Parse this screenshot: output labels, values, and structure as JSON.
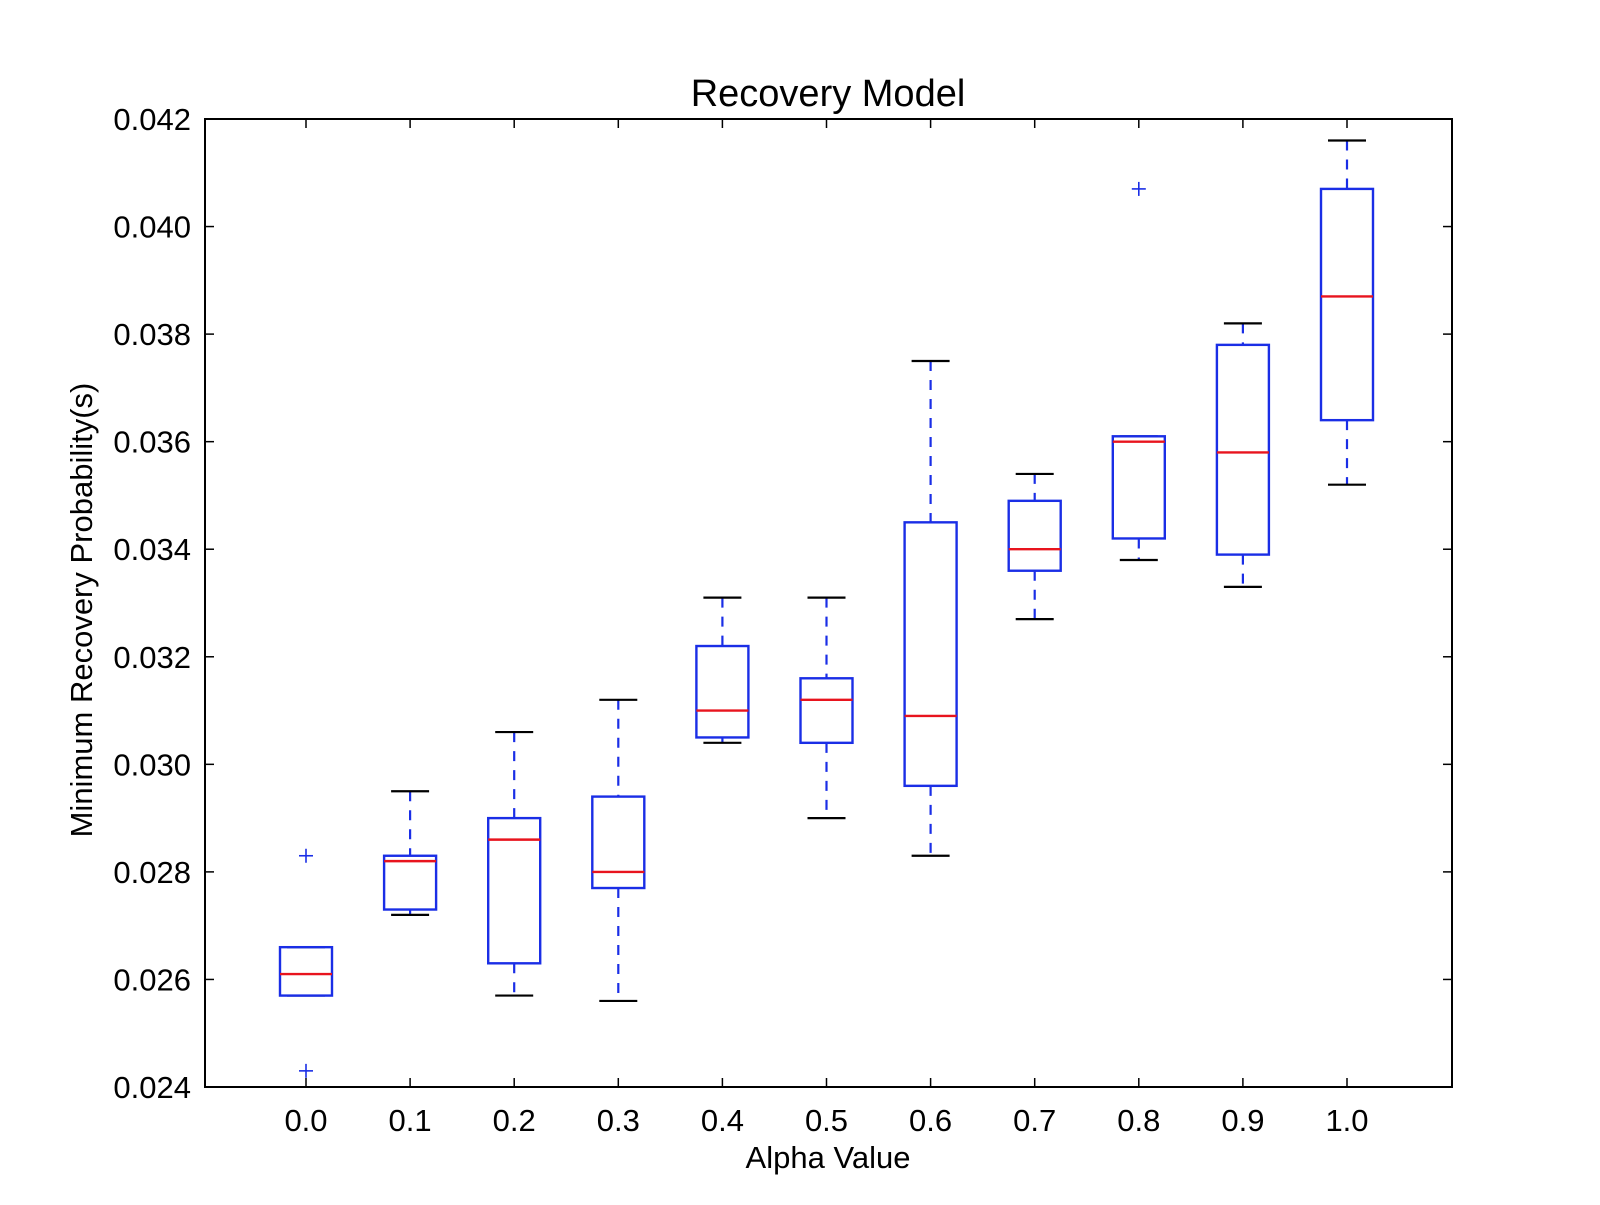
{
  "chart_data": {
    "type": "box",
    "title": "Recovery Model",
    "xlabel": "Alpha Value",
    "ylabel": "Minimum Recovery Probability(s)",
    "ylim": [
      0.024,
      0.042
    ],
    "yticks": [
      "0.024",
      "0.026",
      "0.028",
      "0.030",
      "0.032",
      "0.034",
      "0.036",
      "0.038",
      "0.040",
      "0.042"
    ],
    "categories": [
      "0.0",
      "0.1",
      "0.2",
      "0.3",
      "0.4",
      "0.5",
      "0.6",
      "0.7",
      "0.8",
      "0.9",
      "1.0"
    ],
    "boxes": [
      {
        "whisker_low": 0.0257,
        "q1": 0.0257,
        "median": 0.0261,
        "q3": 0.0266,
        "whisker_high": 0.0266,
        "outliers": [
          0.0283,
          0.0243
        ]
      },
      {
        "whisker_low": 0.0272,
        "q1": 0.0273,
        "median": 0.0282,
        "q3": 0.0283,
        "whisker_high": 0.0295,
        "outliers": []
      },
      {
        "whisker_low": 0.0257,
        "q1": 0.0263,
        "median": 0.0286,
        "q3": 0.029,
        "whisker_high": 0.0306,
        "outliers": []
      },
      {
        "whisker_low": 0.0256,
        "q1": 0.0277,
        "median": 0.028,
        "q3": 0.0294,
        "whisker_high": 0.0312,
        "outliers": []
      },
      {
        "whisker_low": 0.0304,
        "q1": 0.0305,
        "median": 0.031,
        "q3": 0.0322,
        "whisker_high": 0.0331,
        "outliers": []
      },
      {
        "whisker_low": 0.029,
        "q1": 0.0304,
        "median": 0.0312,
        "q3": 0.0316,
        "whisker_high": 0.0331,
        "outliers": []
      },
      {
        "whisker_low": 0.0283,
        "q1": 0.0296,
        "median": 0.0309,
        "q3": 0.0345,
        "whisker_high": 0.0375,
        "outliers": []
      },
      {
        "whisker_low": 0.0327,
        "q1": 0.0336,
        "median": 0.034,
        "q3": 0.0349,
        "whisker_high": 0.0354,
        "outliers": []
      },
      {
        "whisker_low": 0.0338,
        "q1": 0.0342,
        "median": 0.036,
        "q3": 0.0361,
        "whisker_high": 0.0361,
        "outliers": [
          0.0407
        ]
      },
      {
        "whisker_low": 0.0333,
        "q1": 0.0339,
        "median": 0.0358,
        "q3": 0.0378,
        "whisker_high": 0.0382,
        "outliers": []
      },
      {
        "whisker_low": 0.0352,
        "q1": 0.0364,
        "median": 0.0387,
        "q3": 0.0407,
        "whisker_high": 0.0416,
        "outliers": []
      }
    ],
    "colors": {
      "box": "#1a2ee6",
      "median": "#e8141e",
      "whisker_cap": "#000000",
      "outlier": "#1a2ee6",
      "axes": "#000000"
    },
    "grid": false,
    "legend": "none"
  }
}
